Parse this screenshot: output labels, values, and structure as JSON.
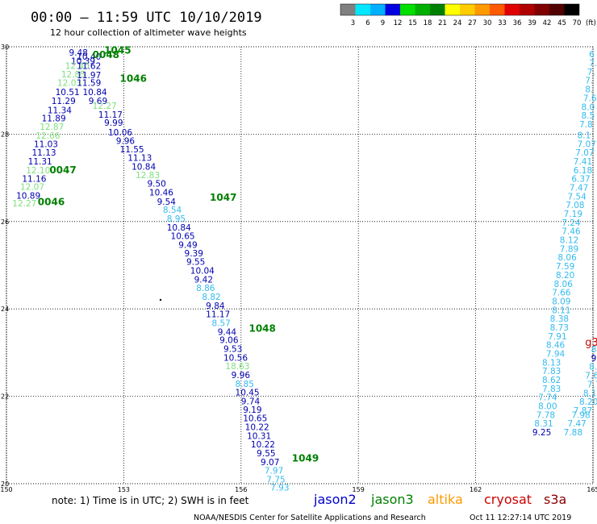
{
  "header": {
    "title": "00:00 – 11:59 UTC 10/10/2019",
    "subtitle": "12 hour collection of altimeter wave heights"
  },
  "footer": {
    "note": "note:  1) Time is in UTC;  2) SWH is in feet",
    "credit": "NOAA/NESDIS Center for Satellite Applications and Research",
    "timestamp": "Oct 11 12:27:14 UTC 2019"
  },
  "colorbar": {
    "unit": "(ft)",
    "labels": [
      "3",
      "6",
      "9",
      "12",
      "15",
      "18",
      "21",
      "24",
      "27",
      "30",
      "33",
      "36",
      "39",
      "42",
      "45",
      "70"
    ],
    "colors": [
      "#808080",
      "#00e8ff",
      "#00b0ff",
      "#0000e0",
      "#00e000",
      "#00b000",
      "#008000",
      "#ffff00",
      "#ffcc00",
      "#ff9900",
      "#ff5a00",
      "#e00000",
      "#b00000",
      "#800000",
      "#500000",
      "#000000"
    ]
  },
  "legend": [
    {
      "name": "jason2",
      "color": "#0000cc"
    },
    {
      "name": "jason3",
      "color": "#008000"
    },
    {
      "name": "altika",
      "color": "#ff9900"
    },
    {
      "name": "cryosat",
      "color": "#cc0000"
    },
    {
      "name": "s3a",
      "color": "#880000"
    }
  ],
  "chart_data": {
    "type": "scatter",
    "xlabel": "",
    "ylabel": "",
    "xlim": [
      150,
      165
    ],
    "ylim": [
      20,
      30
    ],
    "x_ticks": [
      "150",
      "153",
      "156",
      "159",
      "162",
      "165"
    ],
    "y_ticks": [
      "20",
      "22",
      "24",
      "26",
      "28",
      "30"
    ],
    "grid": true,
    "colors": {
      "dark_blue": "#0000b0",
      "light_green": "#7fe07f",
      "cyan": "#33bbee",
      "time_green": "#008000"
    },
    "time_labels": [
      {
        "text": "1045",
        "x": 152.5,
        "y": 29.92
      },
      {
        "text": "0048",
        "x": 152.2,
        "y": 29.82
      },
      {
        "text": "1046",
        "x": 152.9,
        "y": 29.27
      },
      {
        "text": "0047",
        "x": 151.1,
        "y": 27.18
      },
      {
        "text": "0046",
        "x": 150.8,
        "y": 26.45
      },
      {
        "text": "1047",
        "x": 155.2,
        "y": 26.55
      },
      {
        "text": "1048",
        "x": 156.2,
        "y": 23.55
      },
      {
        "text": "1049",
        "x": 157.3,
        "y": 20.58
      }
    ],
    "points": [
      {
        "v": "9.48",
        "x": 151.6,
        "y": 29.87,
        "c": "dark_blue"
      },
      {
        "v": "10.40",
        "x": 151.8,
        "y": 29.78,
        "c": "dark_blue"
      },
      {
        "v": "10.39",
        "x": 151.65,
        "y": 29.68,
        "c": "dark_blue"
      },
      {
        "v": "12.40",
        "x": 151.5,
        "y": 29.57,
        "c": "light_green"
      },
      {
        "v": "11.62",
        "x": 151.8,
        "y": 29.57,
        "c": "dark_blue"
      },
      {
        "v": "12.85",
        "x": 151.4,
        "y": 29.37,
        "c": "light_green"
      },
      {
        "v": "11.97",
        "x": 151.8,
        "y": 29.35,
        "c": "dark_blue"
      },
      {
        "v": "12.03",
        "x": 151.3,
        "y": 29.18,
        "c": "light_green"
      },
      {
        "v": "11.59",
        "x": 151.8,
        "y": 29.18,
        "c": "dark_blue"
      },
      {
        "v": "10.51",
        "x": 151.25,
        "y": 28.97,
        "c": "dark_blue"
      },
      {
        "v": "10.84",
        "x": 151.95,
        "y": 28.97,
        "c": "dark_blue"
      },
      {
        "v": "11.29",
        "x": 151.15,
        "y": 28.76,
        "c": "dark_blue"
      },
      {
        "v": "9.69",
        "x": 152.1,
        "y": 28.76,
        "c": "dark_blue"
      },
      {
        "v": "12.27",
        "x": 152.2,
        "y": 28.65,
        "c": "light_green"
      },
      {
        "v": "11.34",
        "x": 151.05,
        "y": 28.55,
        "c": "dark_blue"
      },
      {
        "v": "11.17",
        "x": 152.35,
        "y": 28.45,
        "c": "dark_blue"
      },
      {
        "v": "11.89",
        "x": 150.9,
        "y": 28.37,
        "c": "dark_blue"
      },
      {
        "v": "9.99",
        "x": 152.5,
        "y": 28.27,
        "c": "dark_blue"
      },
      {
        "v": "12.87",
        "x": 150.85,
        "y": 28.17,
        "c": "light_green"
      },
      {
        "v": "10.06",
        "x": 152.6,
        "y": 28.04,
        "c": "dark_blue"
      },
      {
        "v": "12.66",
        "x": 150.75,
        "y": 27.97,
        "c": "light_green"
      },
      {
        "v": "9.96",
        "x": 152.8,
        "y": 27.85,
        "c": "dark_blue"
      },
      {
        "v": "11.03",
        "x": 150.7,
        "y": 27.78,
        "c": "dark_blue"
      },
      {
        "v": "11.55",
        "x": 152.9,
        "y": 27.66,
        "c": "dark_blue"
      },
      {
        "v": "11.13",
        "x": 150.65,
        "y": 27.58,
        "c": "dark_blue"
      },
      {
        "v": "11.13",
        "x": 153.1,
        "y": 27.46,
        "c": "dark_blue"
      },
      {
        "v": "11.31",
        "x": 150.55,
        "y": 27.38,
        "c": "dark_blue"
      },
      {
        "v": "10.84",
        "x": 153.2,
        "y": 27.26,
        "c": "dark_blue"
      },
      {
        "v": "12.10",
        "x": 150.5,
        "y": 27.18,
        "c": "light_green"
      },
      {
        "v": "12.83",
        "x": 153.3,
        "y": 27.07,
        "c": "light_green"
      },
      {
        "v": "11.16",
        "x": 150.4,
        "y": 26.98,
        "c": "dark_blue"
      },
      {
        "v": "9.50",
        "x": 153.6,
        "y": 26.87,
        "c": "dark_blue"
      },
      {
        "v": "12.07",
        "x": 150.35,
        "y": 26.8,
        "c": "light_green"
      },
      {
        "v": "10.46",
        "x": 153.65,
        "y": 26.67,
        "c": "dark_blue"
      },
      {
        "v": "10.89",
        "x": 150.25,
        "y": 26.6,
        "c": "dark_blue"
      },
      {
        "v": "9.54",
        "x": 153.85,
        "y": 26.46,
        "c": "dark_blue"
      },
      {
        "v": "12.27",
        "x": 150.15,
        "y": 26.42,
        "c": "light_green"
      },
      {
        "v": "8.54",
        "x": 154.0,
        "y": 26.27,
        "c": "cyan"
      },
      {
        "v": "8.95",
        "x": 154.1,
        "y": 26.07,
        "c": "cyan"
      },
      {
        "v": "10.84",
        "x": 154.1,
        "y": 25.87,
        "c": "dark_blue"
      },
      {
        "v": "10.65",
        "x": 154.2,
        "y": 25.67,
        "c": "dark_blue"
      },
      {
        "v": "9.49",
        "x": 154.4,
        "y": 25.47,
        "c": "dark_blue"
      },
      {
        "v": "9.39",
        "x": 154.55,
        "y": 25.28,
        "c": "dark_blue"
      },
      {
        "v": "9.55",
        "x": 154.6,
        "y": 25.08,
        "c": "dark_blue"
      },
      {
        "v": "10.04",
        "x": 154.7,
        "y": 24.88,
        "c": "dark_blue"
      },
      {
        "v": "9.42",
        "x": 154.8,
        "y": 24.68,
        "c": "dark_blue"
      },
      {
        "v": "8.86",
        "x": 154.85,
        "y": 24.48,
        "c": "cyan"
      },
      {
        "v": "8.82",
        "x": 155.0,
        "y": 24.28,
        "c": "cyan"
      },
      {
        "v": "9.84",
        "x": 155.1,
        "y": 24.08,
        "c": "dark_blue"
      },
      {
        "v": "11.17",
        "x": 155.1,
        "y": 23.88,
        "c": "dark_blue"
      },
      {
        "v": "8.57",
        "x": 155.25,
        "y": 23.68,
        "c": "cyan"
      },
      {
        "v": "9.44",
        "x": 155.4,
        "y": 23.48,
        "c": "dark_blue"
      },
      {
        "v": "9.06",
        "x": 155.45,
        "y": 23.29,
        "c": "dark_blue"
      },
      {
        "v": "9.53",
        "x": 155.55,
        "y": 23.09,
        "c": "dark_blue"
      },
      {
        "v": "10.56",
        "x": 155.55,
        "y": 22.89,
        "c": "dark_blue"
      },
      {
        "v": "18.63",
        "x": 155.6,
        "y": 22.69,
        "c": "light_green"
      },
      {
        "v": "9.96",
        "x": 155.75,
        "y": 22.49,
        "c": "dark_blue"
      },
      {
        "v": "8.85",
        "x": 155.85,
        "y": 22.29,
        "c": "cyan"
      },
      {
        "v": "10.45",
        "x": 155.85,
        "y": 22.09,
        "c": "dark_blue"
      },
      {
        "v": "9.74",
        "x": 156.0,
        "y": 21.89,
        "c": "dark_blue"
      },
      {
        "v": "9.19",
        "x": 156.05,
        "y": 21.7,
        "c": "dark_blue"
      },
      {
        "v": "10.65",
        "x": 156.05,
        "y": 21.5,
        "c": "dark_blue"
      },
      {
        "v": "10.22",
        "x": 156.1,
        "y": 21.3,
        "c": "dark_blue"
      },
      {
        "v": "10.31",
        "x": 156.15,
        "y": 21.1,
        "c": "dark_blue"
      },
      {
        "v": "10.22",
        "x": 156.25,
        "y": 20.9,
        "c": "dark_blue"
      },
      {
        "v": "9.55",
        "x": 156.4,
        "y": 20.7,
        "c": "dark_blue"
      },
      {
        "v": "9.07",
        "x": 156.5,
        "y": 20.5,
        "c": "dark_blue"
      },
      {
        "v": "7.97",
        "x": 156.6,
        "y": 20.3,
        "c": "cyan"
      },
      {
        "v": "7.75",
        "x": 156.65,
        "y": 20.1,
        "c": "cyan"
      },
      {
        "v": "7.93",
        "x": 156.75,
        "y": 19.92,
        "c": "cyan"
      },
      {
        "v": "6",
        "x": 164.9,
        "y": 29.83,
        "c": "cyan"
      },
      {
        "v": "7.",
        "x": 164.9,
        "y": 29.63,
        "c": "cyan"
      },
      {
        "v": "7.",
        "x": 164.85,
        "y": 29.43,
        "c": "cyan"
      },
      {
        "v": "7.",
        "x": 164.8,
        "y": 29.23,
        "c": "cyan"
      },
      {
        "v": "8.",
        "x": 164.8,
        "y": 29.03,
        "c": "cyan"
      },
      {
        "v": "7.6",
        "x": 164.75,
        "y": 28.83,
        "c": "cyan"
      },
      {
        "v": "8.0",
        "x": 164.7,
        "y": 28.63,
        "c": "cyan"
      },
      {
        "v": "8.5",
        "x": 164.7,
        "y": 28.43,
        "c": "cyan"
      },
      {
        "v": "7.8",
        "x": 164.65,
        "y": 28.23,
        "c": "cyan"
      },
      {
        "v": "8.1",
        "x": 164.6,
        "y": 27.98,
        "c": "cyan"
      },
      {
        "v": "7.07",
        "x": 164.6,
        "y": 27.78,
        "c": "cyan"
      },
      {
        "v": "7.07",
        "x": 164.55,
        "y": 27.58,
        "c": "cyan"
      },
      {
        "v": "7.41",
        "x": 164.5,
        "y": 27.38,
        "c": "cyan"
      },
      {
        "v": "6.18",
        "x": 164.5,
        "y": 27.18,
        "c": "cyan"
      },
      {
        "v": "6.37",
        "x": 164.45,
        "y": 26.98,
        "c": "cyan"
      },
      {
        "v": "7.47",
        "x": 164.4,
        "y": 26.78,
        "c": "cyan"
      },
      {
        "v": "7.54",
        "x": 164.35,
        "y": 26.58,
        "c": "cyan"
      },
      {
        "v": "7.08",
        "x": 164.3,
        "y": 26.38,
        "c": "cyan"
      },
      {
        "v": "7.19",
        "x": 164.25,
        "y": 26.18,
        "c": "cyan"
      },
      {
        "v": "7.24",
        "x": 164.2,
        "y": 25.98,
        "c": "cyan"
      },
      {
        "v": "7.46",
        "x": 164.2,
        "y": 25.78,
        "c": "cyan"
      },
      {
        "v": "8.12",
        "x": 164.15,
        "y": 25.58,
        "c": "cyan"
      },
      {
        "v": "7.89",
        "x": 164.15,
        "y": 25.38,
        "c": "cyan"
      },
      {
        "v": "8.06",
        "x": 164.1,
        "y": 25.18,
        "c": "cyan"
      },
      {
        "v": "7.59",
        "x": 164.05,
        "y": 24.98,
        "c": "cyan"
      },
      {
        "v": "8.20",
        "x": 164.05,
        "y": 24.78,
        "c": "cyan"
      },
      {
        "v": "8.06",
        "x": 164.0,
        "y": 24.58,
        "c": "cyan"
      },
      {
        "v": "7.66",
        "x": 163.95,
        "y": 24.38,
        "c": "cyan"
      },
      {
        "v": "8.09",
        "x": 163.95,
        "y": 24.18,
        "c": "cyan"
      },
      {
        "v": "8.11",
        "x": 163.95,
        "y": 23.98,
        "c": "cyan"
      },
      {
        "v": "8.38",
        "x": 163.9,
        "y": 23.78,
        "c": "cyan"
      },
      {
        "v": "8.73",
        "x": 163.9,
        "y": 23.58,
        "c": "cyan"
      },
      {
        "v": "7.91",
        "x": 163.85,
        "y": 23.38,
        "c": "cyan"
      },
      {
        "v": "8.46",
        "x": 163.8,
        "y": 23.18,
        "c": "cyan"
      },
      {
        "v": "7.94",
        "x": 163.8,
        "y": 22.98,
        "c": "cyan"
      },
      {
        "v": "8.13",
        "x": 163.7,
        "y": 22.78,
        "c": "cyan"
      },
      {
        "v": "7.83",
        "x": 163.7,
        "y": 22.58,
        "c": "cyan"
      },
      {
        "v": "8.62",
        "x": 163.7,
        "y": 22.38,
        "c": "cyan"
      },
      {
        "v": "7.83",
        "x": 163.7,
        "y": 22.18,
        "c": "cyan"
      },
      {
        "v": "7.74",
        "x": 163.6,
        "y": 21.98,
        "c": "cyan"
      },
      {
        "v": "8.00",
        "x": 163.6,
        "y": 21.78,
        "c": "cyan"
      },
      {
        "v": "7.78",
        "x": 163.55,
        "y": 21.58,
        "c": "cyan"
      },
      {
        "v": "8.31",
        "x": 163.5,
        "y": 21.38,
        "c": "cyan"
      },
      {
        "v": "9.25",
        "x": 163.45,
        "y": 21.18,
        "c": "dark_blue"
      },
      {
        "v": "8.1",
        "x": 164.95,
        "y": 23.08,
        "c": "cyan"
      },
      {
        "v": "9.",
        "x": 164.95,
        "y": 22.88,
        "c": "dark_blue"
      },
      {
        "v": "8.0",
        "x": 164.9,
        "y": 22.68,
        "c": "cyan"
      },
      {
        "v": "7.6",
        "x": 164.8,
        "y": 22.48,
        "c": "cyan"
      },
      {
        "v": "7.7",
        "x": 164.85,
        "y": 22.28,
        "c": "cyan"
      },
      {
        "v": "8.16",
        "x": 164.75,
        "y": 22.08,
        "c": "cyan"
      },
      {
        "v": "8.20",
        "x": 164.65,
        "y": 21.88,
        "c": "cyan"
      },
      {
        "v": "7.87",
        "x": 164.5,
        "y": 21.68,
        "c": "cyan"
      },
      {
        "v": "7.98",
        "x": 164.45,
        "y": 21.58,
        "c": "cyan"
      },
      {
        "v": "7.47",
        "x": 164.35,
        "y": 21.38,
        "c": "cyan"
      },
      {
        "v": "7.88",
        "x": 164.25,
        "y": 21.18,
        "c": "cyan"
      }
    ],
    "s3a_marker": {
      "text": "g3",
      "x": 164.8,
      "y": 23.25
    }
  }
}
